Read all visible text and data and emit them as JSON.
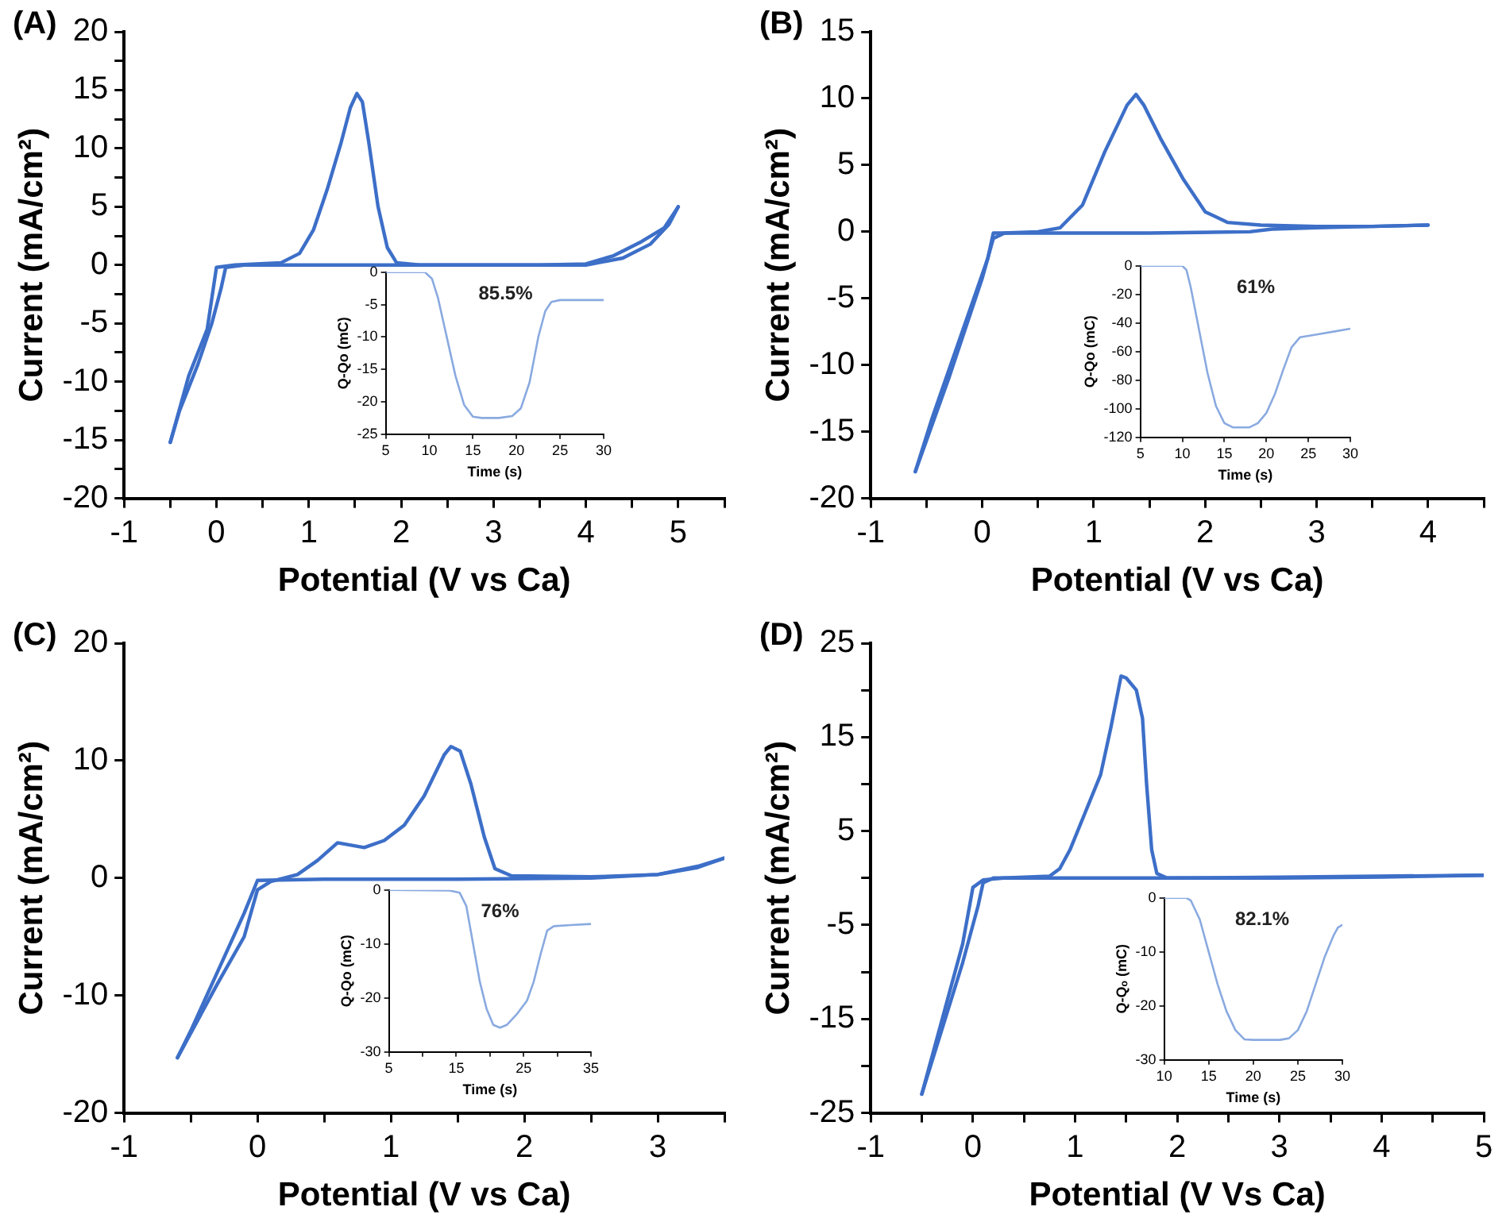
{
  "chart_data": [
    {
      "type": "line",
      "title": "(A)",
      "xlabel": "Potential (V vs Ca)",
      "ylabel": "Current (mA/cm²)",
      "xlim": [
        -1,
        5.5
      ],
      "ylim": [
        -20,
        20
      ],
      "xticks": [
        -1,
        {
          "value": -0.5,
          "label": null
        },
        0,
        {
          "value": 0.5,
          "label": null
        },
        1,
        {
          "value": 1.5,
          "label": null
        },
        2,
        {
          "value": 2.5,
          "label": null
        },
        3,
        {
          "value": 3.5,
          "label": null
        },
        4,
        {
          "value": 4.5,
          "label": null
        },
        5,
        {
          "value": 5.5,
          "label": null
        }
      ],
      "yticks": [
        -20,
        {
          "value": -17.5,
          "label": null
        },
        -15,
        {
          "value": -12.5,
          "label": null
        },
        -10,
        {
          "value": -7.5,
          "label": null
        },
        -5,
        {
          "value": -2.5,
          "label": null
        },
        0,
        {
          "value": 2.5,
          "label": null
        },
        5,
        {
          "value": 7.5,
          "label": null
        },
        10,
        {
          "value": 12.5,
          "label": null
        },
        15,
        {
          "value": 17.5,
          "label": null
        },
        20
      ],
      "series": [
        {
          "color": "#3d6fc8",
          "x": [
            -0.5,
            -0.3,
            -0.1,
            0.0,
            0.2,
            0.7,
            0.9,
            1.05,
            1.2,
            1.35,
            1.45,
            1.52,
            1.58,
            1.65,
            1.75,
            1.85,
            1.95,
            2.2,
            3.5,
            4.0,
            4.3,
            4.6,
            4.85,
            5.0
          ],
          "values": [
            -15.2,
            -9.5,
            -5.5,
            -0.2,
            0,
            0.2,
            1,
            3,
            6.5,
            10.5,
            13.5,
            14.7,
            14,
            10.5,
            5,
            1.5,
            0.2,
            0,
            0,
            0.1,
            0.8,
            2,
            3.2,
            5
          ]
        },
        {
          "color": "#3d6fc8",
          "x": [
            -0.5,
            -0.4,
            -0.2,
            -0.05,
            0.05,
            0.1,
            0.3,
            1,
            2,
            3,
            4,
            4.4,
            4.7,
            4.9,
            5.0
          ],
          "values": [
            -15.2,
            -12.5,
            -8.5,
            -5,
            -2,
            -0.2,
            0,
            0,
            0,
            0,
            0,
            0.6,
            1.8,
            3.5,
            5
          ]
        }
      ]
    },
    {
      "type": "line",
      "xlabel": "Time (s)",
      "ylabel": "Q-Qo (mC)",
      "xlim": [
        5,
        30
      ],
      "ylim": [
        -25,
        0
      ],
      "xticks": [
        5,
        10,
        15,
        20,
        25,
        30
      ],
      "yticks": [
        -25,
        -20,
        -15,
        -10,
        -5,
        0
      ],
      "annotations": [
        "85.5%"
      ],
      "series": [
        {
          "color": "#8aaae0",
          "x": [
            5,
            9.5,
            10.3,
            11,
            12,
            13,
            14,
            15,
            16,
            18,
            19.5,
            20.5,
            21.5,
            22.5,
            23.3,
            24,
            25,
            30
          ],
          "values": [
            0,
            0,
            -1,
            -4,
            -10,
            -16,
            -20.5,
            -22.3,
            -22.5,
            -22.5,
            -22.2,
            -21,
            -17,
            -10,
            -6,
            -4.6,
            -4.3,
            -4.3
          ]
        }
      ]
    },
    {
      "type": "line",
      "title": "(B)",
      "xlabel": "Potential (V vs Ca)",
      "ylabel": "Current (mA/cm²)",
      "xlim": [
        -1,
        4.5
      ],
      "ylim": [
        -20,
        15
      ],
      "xticks": [
        -1,
        {
          "value": -0.5,
          "label": null
        },
        0,
        {
          "value": 0.5,
          "label": null
        },
        1,
        {
          "value": 1.5,
          "label": null
        },
        2,
        {
          "value": 2.5,
          "label": null
        },
        3,
        {
          "value": 3.5,
          "label": null
        },
        4,
        {
          "value": 4.5,
          "label": null
        }
      ],
      "yticks": [
        -20,
        -15,
        -10,
        -5,
        0,
        5,
        10,
        15
      ],
      "series": [
        {
          "color": "#3d6fc8",
          "x": [
            -0.6,
            -0.3,
            0,
            0.1,
            0.2,
            0.5,
            0.7,
            0.9,
            1.1,
            1.3,
            1.38,
            1.45,
            1.6,
            1.8,
            2.0,
            2.2,
            2.5,
            3,
            3.5,
            4
          ],
          "values": [
            -18,
            -11,
            -3.5,
            -0.5,
            -0.1,
            0,
            0.3,
            2,
            6,
            9.5,
            10.3,
            9.5,
            7,
            4,
            1.5,
            0.7,
            0.5,
            0.4,
            0.4,
            0.5
          ]
        },
        {
          "color": "#3d6fc8",
          "x": [
            -0.6,
            -0.45,
            -0.2,
            0.05,
            0.1,
            0.5,
            1.5,
            2.4,
            2.6,
            3,
            3.5,
            4
          ],
          "values": [
            -18,
            -14,
            -8,
            -2,
            -0.1,
            -0.1,
            -0.1,
            0,
            0.2,
            0.3,
            0.4,
            0.5
          ]
        }
      ]
    },
    {
      "type": "line",
      "xlabel": "Time (s)",
      "ylabel": "Q-Qo (mC)",
      "xlim": [
        5,
        30
      ],
      "ylim": [
        -120,
        0
      ],
      "xticks": [
        5,
        10,
        15,
        20,
        25,
        30
      ],
      "yticks": [
        -120,
        -100,
        -80,
        -60,
        -40,
        -20,
        0
      ],
      "annotations": [
        "61%"
      ],
      "series": [
        {
          "color": "#8aaae0",
          "x": [
            5,
            10,
            10.5,
            11,
            12,
            13,
            14,
            15,
            16,
            18,
            19,
            20,
            21,
            22,
            23,
            24,
            26,
            28,
            30
          ],
          "values": [
            0,
            0,
            -3,
            -15,
            -45,
            -75,
            -98,
            -110,
            -113,
            -113,
            -110,
            -103,
            -90,
            -73,
            -57,
            -50,
            -48,
            -46,
            -44
          ]
        }
      ]
    },
    {
      "type": "line",
      "title": "(C)",
      "xlabel": "Potential (V vs Ca)",
      "ylabel": "Current (mA/cm²)",
      "xlim": [
        -1,
        3.5
      ],
      "ylim": [
        -20,
        20
      ],
      "xticks": [
        -1,
        {
          "value": -0.5,
          "label": null
        },
        0,
        {
          "value": 0.5,
          "label": null
        },
        1,
        {
          "value": 1.5,
          "label": null
        },
        2,
        {
          "value": 2.5,
          "label": null
        },
        3,
        {
          "value": 3.5,
          "label": null
        }
      ],
      "yticks": [
        -20,
        -10,
        0,
        10,
        20
      ],
      "series": [
        {
          "color": "#3d6fc8",
          "x": [
            -0.6,
            -0.3,
            -0.1,
            0.0,
            0.1,
            0.3,
            0.45,
            0.6,
            0.7,
            0.8,
            0.95,
            1.1,
            1.25,
            1.4,
            1.45,
            1.52,
            1.6,
            1.7,
            1.78,
            1.9,
            2.5,
            3,
            3.3,
            3.5
          ],
          "values": [
            -15.3,
            -9,
            -5,
            -1,
            -0.3,
            0.3,
            1.5,
            3,
            2.8,
            2.6,
            3.2,
            4.5,
            7,
            10.5,
            11.2,
            10.8,
            8,
            3.5,
            0.8,
            0.2,
            0.1,
            0.3,
            0.9,
            1.7
          ]
        },
        {
          "color": "#3d6fc8",
          "x": [
            -0.6,
            -0.5,
            -0.3,
            -0.1,
            0.0,
            0.5,
            1.5,
            2.5,
            3.0,
            3.3,
            3.5
          ],
          "values": [
            -15.3,
            -13,
            -8,
            -3,
            -0.2,
            -0.1,
            -0.1,
            0,
            0.3,
            1,
            1.7
          ]
        }
      ]
    },
    {
      "type": "line",
      "xlabel": "Time (s)",
      "ylabel": "Q-Qo (mC)",
      "xlim": [
        5,
        35
      ],
      "ylim": [
        -30,
        0
      ],
      "xticks": [
        5,
        {
          "value": 10,
          "label": null
        },
        15,
        {
          "value": 20,
          "label": null
        },
        25,
        {
          "value": 30,
          "label": null
        },
        35
      ],
      "yticks": [
        -30,
        -20,
        -10,
        0
      ],
      "annotations": [
        "76%"
      ],
      "series": [
        {
          "color": "#8aaae0",
          "x": [
            5,
            14,
            15.5,
            16.5,
            17.5,
            18.5,
            19.5,
            20.5,
            21.5,
            22.5,
            24,
            25.5,
            26.5,
            27.5,
            28.5,
            29.5,
            32,
            35
          ],
          "values": [
            0,
            -0.1,
            -0.5,
            -3,
            -10,
            -17,
            -22,
            -25,
            -25.5,
            -25,
            -23,
            -20.5,
            -17,
            -12,
            -7.5,
            -6.7,
            -6.5,
            -6.3
          ]
        }
      ]
    },
    {
      "type": "line",
      "title": "(D)",
      "xlabel": "Potential (V Vs Ca)",
      "ylabel": "Current (mA/cm²)",
      "xlim": [
        -1,
        5
      ],
      "ylim": [
        -25,
        25
      ],
      "xticks": [
        -1,
        {
          "value": -0.5,
          "label": null
        },
        0,
        {
          "value": 0.5,
          "label": null
        },
        1,
        {
          "value": 1.5,
          "label": null
        },
        2,
        {
          "value": 2.5,
          "label": null
        },
        3,
        {
          "value": 3.5,
          "label": null
        },
        4,
        {
          "value": 4.5,
          "label": null
        },
        5
      ],
      "yticks": [
        -25,
        {
          "value": -20,
          "label": null
        },
        -15,
        {
          "value": -10,
          "label": null
        },
        -5,
        {
          "value": 0,
          "label": null
        },
        5,
        {
          "value": 10,
          "label": null
        },
        15,
        {
          "value": 20,
          "label": null
        },
        25
      ],
      "series": [
        {
          "color": "#3d6fc8",
          "x": [
            -0.5,
            -0.3,
            -0.1,
            0.0,
            0.1,
            0.3,
            0.75,
            0.85,
            0.95,
            1.1,
            1.25,
            1.35,
            1.45,
            1.5,
            1.6,
            1.66,
            1.7,
            1.75,
            1.8,
            1.9,
            3,
            5
          ],
          "values": [
            -23,
            -15,
            -7,
            -1,
            -0.2,
            0,
            0.2,
            1,
            3,
            7,
            11,
            16,
            21.5,
            21.3,
            20,
            17,
            10,
            3,
            0.5,
            0,
            0.1,
            0.3
          ]
        },
        {
          "color": "#3d6fc8",
          "x": [
            -0.5,
            -0.3,
            -0.1,
            0.05,
            0.1,
            0.2,
            1,
            2,
            3,
            4,
            5
          ],
          "values": [
            -23,
            -16,
            -9,
            -3,
            -0.5,
            0,
            0,
            0,
            0,
            0.1,
            0.3
          ]
        }
      ]
    },
    {
      "type": "line",
      "xlabel": "Time (s)",
      "ylabel": "Q-Qₒ (mC)",
      "xlim": [
        10,
        30
      ],
      "ylim": [
        -30,
        0
      ],
      "xticks": [
        10,
        15,
        20,
        25,
        30
      ],
      "yticks": [
        -30,
        -20,
        -10,
        0
      ],
      "annotations": [
        "82.1%"
      ],
      "series": [
        {
          "color": "#8aaae0",
          "x": [
            10,
            12.5,
            13,
            14,
            15,
            16,
            17,
            18,
            19,
            20,
            23,
            24,
            25,
            26,
            27,
            28,
            29,
            29.5,
            30
          ],
          "values": [
            0,
            0,
            -0.5,
            -4,
            -10,
            -16,
            -21,
            -24.5,
            -26.2,
            -26.3,
            -26.3,
            -26,
            -24.5,
            -21,
            -16,
            -11,
            -7,
            -5.5,
            -5
          ]
        }
      ]
    }
  ]
}
